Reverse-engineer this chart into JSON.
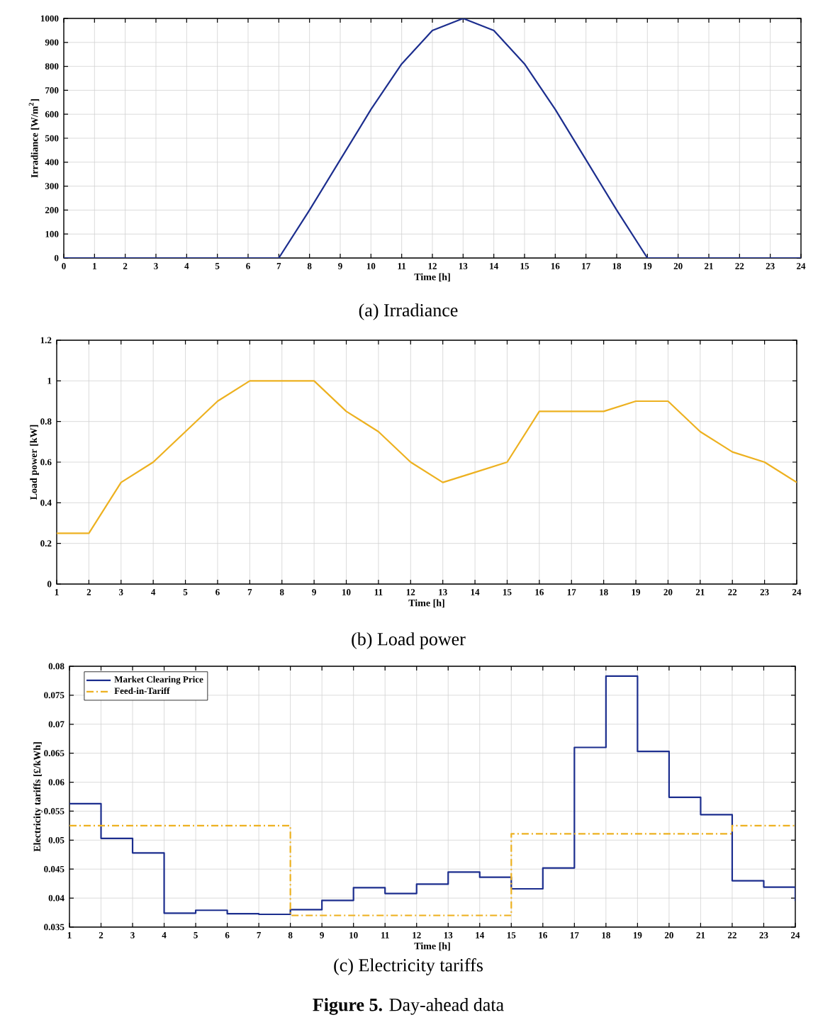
{
  "chart_data": [
    {
      "type": "line",
      "title": "(a) Irradiance",
      "xlabel": "Time [h]",
      "ylabel": "Irradiance [W/m$^{2}$]",
      "color": "#1c2e8e",
      "grid": true,
      "x": [
        0,
        1,
        2,
        3,
        4,
        5,
        6,
        7,
        8,
        9,
        10,
        11,
        12,
        13,
        14,
        15,
        16,
        17,
        18,
        19,
        20,
        21,
        22,
        23,
        24
      ],
      "values": [
        0,
        0,
        0,
        0,
        0,
        0,
        0,
        0,
        200,
        410,
        620,
        810,
        950,
        1000,
        950,
        810,
        620,
        410,
        200,
        0,
        0,
        0,
        0,
        0,
        0
      ],
      "xlim": [
        0,
        24
      ],
      "xticks": [
        0,
        1,
        2,
        3,
        4,
        5,
        6,
        7,
        8,
        9,
        10,
        11,
        12,
        13,
        14,
        15,
        16,
        17,
        18,
        19,
        20,
        21,
        22,
        23,
        24
      ],
      "ylim": [
        0,
        1000
      ],
      "yticks": [
        0,
        100,
        200,
        300,
        400,
        500,
        600,
        700,
        800,
        900,
        1000
      ]
    },
    {
      "type": "line",
      "title": "(b) Load power",
      "xlabel": "Time [h]",
      "ylabel": "Load power [kW]",
      "color": "#edb120",
      "grid": true,
      "x": [
        1,
        2,
        3,
        4,
        5,
        6,
        7,
        8,
        9,
        10,
        11,
        12,
        13,
        14,
        15,
        16,
        17,
        18,
        19,
        20,
        21,
        22,
        23,
        24
      ],
      "values": [
        0.25,
        0.25,
        0.5,
        0.6,
        0.75,
        0.9,
        1,
        1,
        1,
        0.85,
        0.75,
        0.6,
        0.5,
        0.55,
        0.6,
        0.85,
        0.85,
        0.85,
        0.9,
        0.9,
        0.75,
        0.65,
        0.6,
        0.5
      ],
      "xlim": [
        1,
        24
      ],
      "xticks": [
        1,
        2,
        3,
        4,
        5,
        6,
        7,
        8,
        9,
        10,
        11,
        12,
        13,
        14,
        15,
        16,
        17,
        18,
        19,
        20,
        21,
        22,
        23,
        24
      ],
      "ylim": [
        0,
        1.2
      ],
      "yticks": [
        0,
        0.2,
        0.4,
        0.6,
        0.8,
        1,
        1.2
      ]
    },
    {
      "type": "step",
      "title": "(c) Electricity tariffs",
      "xlabel": "Time [h]",
      "ylabel": "Electricity tariffs [£/kWh]",
      "grid": true,
      "legend": "top left",
      "annotations": [
        "**Figure 5.** Day-ahead data"
      ],
      "series": [
        {
          "name": "Market Clearing Price",
          "color": "#1c2e8e",
          "x": [
            1,
            2,
            3,
            4,
            5,
            6,
            7,
            8,
            9,
            10,
            11,
            12,
            13,
            14,
            15,
            16,
            17,
            18,
            19,
            20,
            21,
            22,
            23,
            24
          ],
          "values": [
            0.0563,
            0.0503,
            0.0478,
            0.0374,
            0.0379,
            0.0373,
            0.0372,
            0.038,
            0.0396,
            0.0418,
            0.0408,
            0.0424,
            0.0445,
            0.0436,
            0.0416,
            0.0452,
            0.066,
            0.0783,
            0.0653,
            0.0574,
            0.0544,
            0.043,
            0.0419,
            0.0395
          ]
        },
        {
          "name": "Feed-in-Tariff",
          "color": "#edb120",
          "line_style": "dashed",
          "x": [
            1,
            8,
            15,
            22,
            24
          ],
          "values": [
            0.0525,
            0.037,
            0.0511,
            0.0525,
            0.0525
          ]
        }
      ],
      "xlim": [
        1,
        24
      ],
      "xticks": [
        1,
        2,
        3,
        4,
        5,
        6,
        7,
        8,
        9,
        10,
        11,
        12,
        13,
        14,
        15,
        16,
        17,
        18,
        19,
        20,
        21,
        22,
        23,
        24
      ],
      "ylim": [
        0.035,
        0.08
      ],
      "yticks": [
        0.035,
        0.04,
        0.045,
        0.05,
        0.055,
        0.06,
        0.065,
        0.07,
        0.075,
        0.08
      ]
    }
  ]
}
